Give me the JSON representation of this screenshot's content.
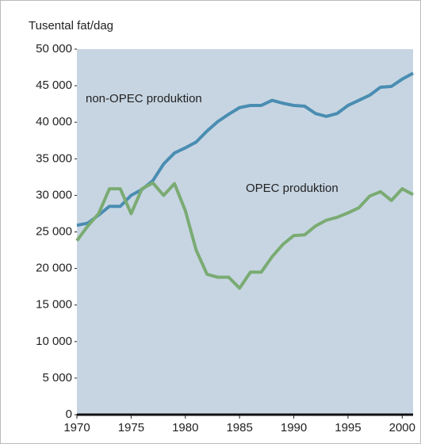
{
  "chart_data": {
    "type": "line",
    "ylabel": "Tusental fat/dag",
    "x": [
      1970,
      1971,
      1972,
      1973,
      1974,
      1975,
      1976,
      1977,
      1978,
      1979,
      1980,
      1981,
      1982,
      1983,
      1984,
      1985,
      1986,
      1987,
      1988,
      1989,
      1990,
      1991,
      1992,
      1993,
      1994,
      1995,
      1996,
      1997,
      1998,
      1999,
      2000,
      2001
    ],
    "series": [
      {
        "name": "non-OPEC produktion",
        "color": "#4a8db2",
        "values": [
          25900,
          26200,
          27300,
          28500,
          28500,
          30000,
          30800,
          32000,
          34300,
          35800,
          36500,
          37300,
          38800,
          40100,
          41100,
          42000,
          42300,
          42300,
          43000,
          42600,
          42300,
          42200,
          41200,
          40800,
          41200,
          42300,
          43000,
          43700,
          44800,
          44900,
          45900,
          46700
        ]
      },
      {
        "name": "OPEC produktion",
        "color": "#7aab73",
        "values": [
          23800,
          25800,
          27500,
          30900,
          30900,
          27500,
          30900,
          31700,
          30000,
          31600,
          27900,
          22500,
          19200,
          18800,
          18800,
          17300,
          19500,
          19500,
          21600,
          23300,
          24500,
          24600,
          25800,
          26600,
          27000,
          27600,
          28300,
          29900,
          30500,
          29300,
          30900,
          30100
        ]
      }
    ],
    "xlim": [
      1970,
      2001
    ],
    "ylim": [
      0,
      50000
    ],
    "xticks": [
      1970,
      1975,
      1980,
      1985,
      1990,
      1995,
      2000
    ],
    "yticks": [
      0,
      {
        "value": 5000,
        "label": "5 000"
      },
      {
        "value": 10000,
        "label": "10 000"
      },
      {
        "value": 15000,
        "label": "15 000"
      },
      {
        "value": 20000,
        "label": "20 000"
      },
      {
        "value": 25000,
        "label": "25 000"
      },
      {
        "value": 30000,
        "label": "30 000"
      },
      {
        "value": 35000,
        "label": "35 000"
      },
      {
        "value": 40000,
        "label": "40 000"
      },
      {
        "value": 45000,
        "label": "45 000"
      },
      {
        "value": 50000,
        "label": "50 000"
      }
    ],
    "grid": false
  }
}
